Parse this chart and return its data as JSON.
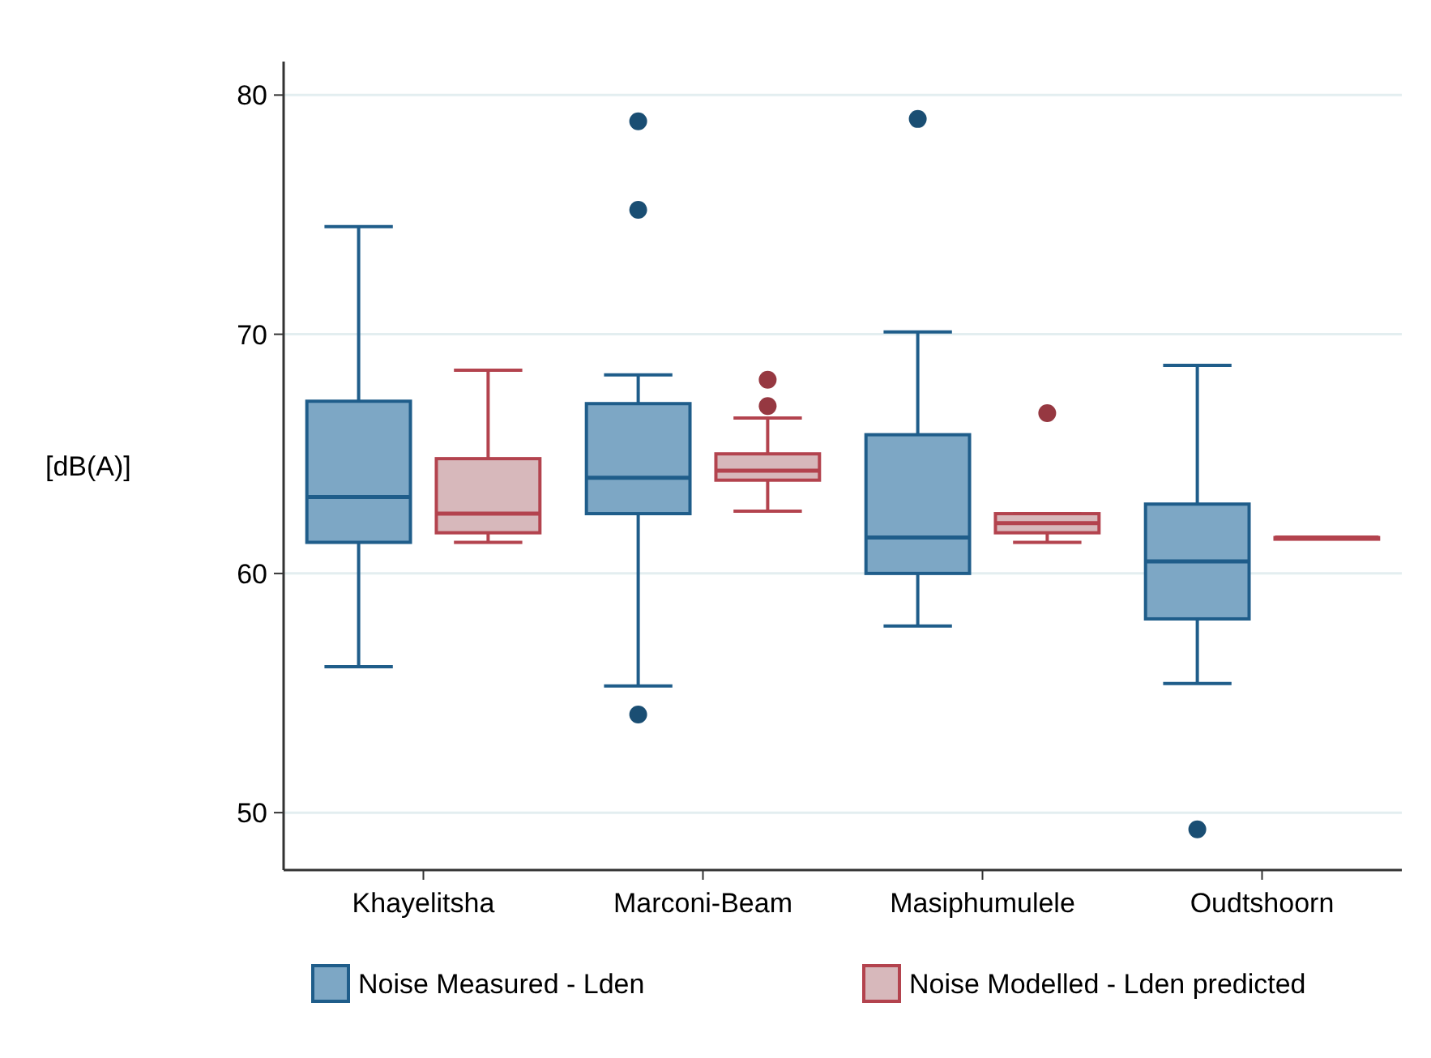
{
  "chart_data": {
    "type": "box",
    "ylabel": "[dB(A)]",
    "categories": [
      "Khayelitsha",
      "Marconi-Beam",
      "Masiphumulele",
      "Oudtshoorn"
    ],
    "ylim": [
      47.6,
      81.4
    ],
    "yticks": [
      50,
      60,
      70,
      80
    ],
    "grid": "y",
    "legend": "bottom",
    "series": [
      {
        "name": "Noise Measured - Lden",
        "color": "#1f5d8a",
        "boxes": [
          {
            "low": 56.1,
            "q1": 61.3,
            "median": 63.2,
            "q3": 67.2,
            "high": 74.5
          },
          {
            "low": 55.3,
            "q1": 62.5,
            "median": 64.0,
            "q3": 67.1,
            "high": 68.3,
            "outliers": [
              78.9,
              75.2,
              54.1
            ]
          },
          {
            "low": 57.8,
            "q1": 60.0,
            "median": 61.5,
            "q3": 65.8,
            "high": 70.1,
            "outliers": [
              79.0
            ]
          },
          {
            "low": 55.4,
            "q1": 58.1,
            "median": 60.5,
            "q3": 62.9,
            "high": 68.7,
            "outliers": [
              49.3
            ]
          }
        ]
      },
      {
        "name": "Noise Modelled - Lden predicted",
        "color": "#b3434e",
        "boxes": [
          {
            "low": 61.3,
            "q1": 61.7,
            "median": 62.5,
            "q3": 64.8,
            "high": 68.5
          },
          {
            "low": 62.6,
            "q1": 63.9,
            "median": 64.3,
            "q3": 65.0,
            "high": 66.5,
            "outliers": [
              68.1,
              67.0
            ]
          },
          {
            "low": 61.3,
            "q1": 61.7,
            "median": 62.1,
            "q3": 62.5,
            "high": 62.5,
            "outliers": [
              66.7
            ]
          },
          {
            "low": 61.5,
            "q1": 61.5,
            "median": 61.5,
            "q3": 61.5,
            "high": 61.5
          }
        ]
      }
    ]
  }
}
